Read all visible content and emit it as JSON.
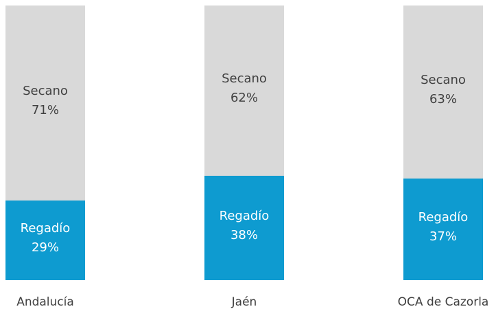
{
  "chart_data": {
    "type": "bar",
    "stacked": true,
    "percent_stacked": true,
    "categories": [
      "Andalucía",
      "Jaén",
      "OCA de Cazorla"
    ],
    "series": [
      {
        "name": "Regadío",
        "values": [
          29,
          38,
          37
        ],
        "labels": [
          "29%",
          "38%",
          "37%"
        ],
        "color": "#0e9bd0",
        "text_color": "#ffffff"
      },
      {
        "name": "Secano",
        "values": [
          71,
          62,
          63
        ],
        "labels": [
          "71%",
          "62%",
          "63%"
        ],
        "color": "#d9d9d9",
        "text_color": "#404040"
      }
    ],
    "ylim": [
      0,
      100
    ],
    "grid": false,
    "legend": "none"
  }
}
